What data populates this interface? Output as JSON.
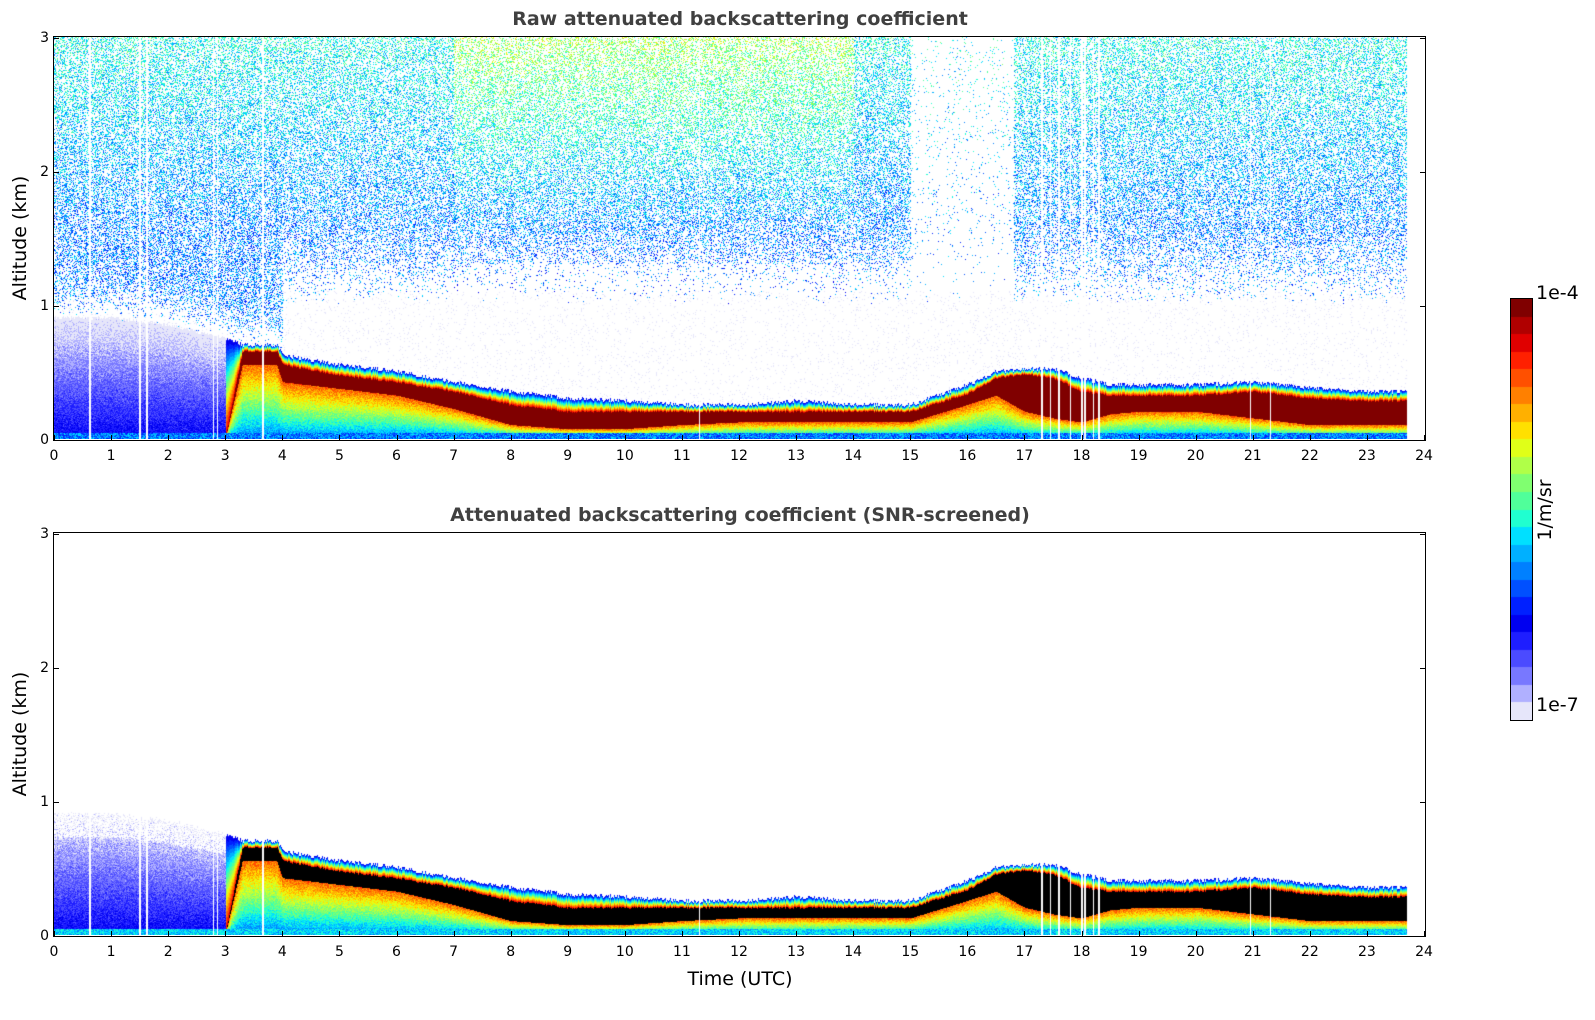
{
  "chart_data": [
    {
      "type": "heatmap",
      "title": "Raw attenuated backscattering coefficient",
      "xlabel": "",
      "ylabel": "Altitude (km)",
      "xlim": [
        0,
        24
      ],
      "ylim": [
        0,
        3
      ],
      "xticks": [
        "0",
        "1",
        "2",
        "3",
        "4",
        "5",
        "6",
        "7",
        "8",
        "9",
        "10",
        "11",
        "12",
        "13",
        "14",
        "15",
        "16",
        "17",
        "18",
        "19",
        "20",
        "21",
        "22",
        "23",
        "24"
      ],
      "yticks": [
        "0",
        "1",
        "2",
        "3"
      ],
      "data_end_hour": 23.7,
      "screened": false,
      "description": "Time-height curtain of lidar backscatter; noisy signal above ~1 km, aerosol boundary layer decreasing from ~0.65 km at 3.3 UTC to ~0.15 km around 9-16 UTC, elevated layer ~0.35-0.5 km from 16-18 UTC and ~0.2-0.35 km from 18-23.7 UTC",
      "layer_profile": {
        "hours": [
          0,
          1,
          2,
          3,
          3.3,
          3.9,
          4,
          5,
          6,
          7,
          8,
          9,
          10,
          11,
          12,
          13,
          14,
          15,
          16,
          16.5,
          17,
          17.5,
          18,
          18.5,
          19,
          20,
          21,
          22,
          23,
          23.7
        ],
        "top_km": [
          0.9,
          0.9,
          0.85,
          0.75,
          0.7,
          0.7,
          0.62,
          0.55,
          0.5,
          0.42,
          0.35,
          0.3,
          0.28,
          0.25,
          0.25,
          0.28,
          0.25,
          0.25,
          0.4,
          0.5,
          0.52,
          0.52,
          0.45,
          0.4,
          0.4,
          0.4,
          0.42,
          0.38,
          0.35,
          0.35
        ],
        "core_top_km": [
          0,
          0,
          0,
          0,
          0.65,
          0.65,
          0.55,
          0.47,
          0.42,
          0.35,
          0.25,
          0.2,
          0.2,
          0.2,
          0.2,
          0.2,
          0.2,
          0.2,
          0.33,
          0.45,
          0.48,
          0.45,
          0.35,
          0.32,
          0.32,
          0.32,
          0.35,
          0.3,
          0.28,
          0.28
        ],
        "core_bot_km": [
          0,
          0,
          0,
          0,
          0.55,
          0.55,
          0.42,
          0.37,
          0.32,
          0.22,
          0.1,
          0.07,
          0.07,
          0.1,
          0.12,
          0.12,
          0.12,
          0.12,
          0.25,
          0.32,
          0.2,
          0.15,
          0.12,
          0.18,
          0.2,
          0.2,
          0.15,
          0.1,
          0.1,
          0.1
        ]
      },
      "gaps_hours": [
        0.62,
        1.5,
        1.62,
        2.78,
        2.85,
        3.65,
        11.3,
        17.3,
        17.45,
        17.6,
        17.8,
        18.0,
        18.05,
        18.2,
        18.3,
        20.95,
        21.3
      ]
    },
    {
      "type": "heatmap",
      "title": "Attenuated backscattering coefficient (SNR-screened)",
      "xlabel": "Time (UTC)",
      "ylabel": "Altitude (km)",
      "xlim": [
        0,
        24
      ],
      "ylim": [
        0,
        3
      ],
      "xticks": [
        "0",
        "1",
        "2",
        "3",
        "4",
        "5",
        "6",
        "7",
        "8",
        "9",
        "10",
        "11",
        "12",
        "13",
        "14",
        "15",
        "16",
        "17",
        "18",
        "19",
        "20",
        "21",
        "22",
        "23",
        "24"
      ],
      "yticks": [
        "0",
        "1",
        "2",
        "3"
      ],
      "data_end_hour": 23.7,
      "screened": true,
      "description": "Same curtain with low-SNR pixels removed; saturated boundary layer core shown in black",
      "saturated_color": "#000000"
    }
  ],
  "colorbar": {
    "min_label": "1e-7",
    "max_label": "1e-4",
    "unit": "1/m/sr",
    "scale": "log",
    "colormap": [
      "#e6e6fa",
      "#b0b0ff",
      "#7878ff",
      "#4b4bff",
      "#1e1eff",
      "#0000f0",
      "#0020ff",
      "#0050ff",
      "#0080ff",
      "#00b0ff",
      "#00e0ff",
      "#20ffd0",
      "#50ff9a",
      "#80ff70",
      "#b0ff48",
      "#e0ff18",
      "#ffe000",
      "#ffb000",
      "#ff8000",
      "#ff5000",
      "#ff2000",
      "#e00000",
      "#b00000",
      "#800000"
    ]
  }
}
